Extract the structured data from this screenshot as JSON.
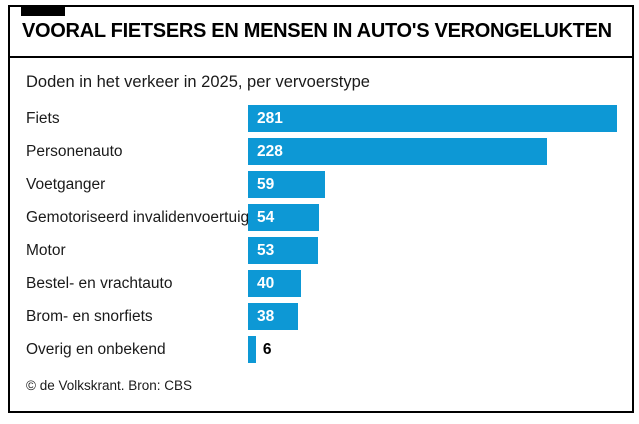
{
  "header": {
    "title": "VOORAL FIETSERS EN MENSEN IN AUTO'S VERONGELUKTEN"
  },
  "subtitle": "Doden in het verkeer in 2025, per vervoerstype",
  "footer": {
    "credit": "© de Volkskrant. Bron: CBS"
  },
  "colors": {
    "bar": "#0d98d5",
    "frame_border": "#000000",
    "title_text": "#000000",
    "body_text": "#1a1a1a",
    "value_label_inside": "#ffffff",
    "value_label_outside": "#000000"
  },
  "chart_data": {
    "type": "bar",
    "orientation": "horizontal",
    "title": "VOORAL FIETSERS EN MENSEN IN AUTO'S VERONGELUKTEN",
    "subtitle": "Doden in het verkeer in 2025, per vervoerstype",
    "categories": [
      "Fiets",
      "Personenauto",
      "Voetganger",
      "Gemotoriseerd invalidenvoertuig",
      "Motor",
      "Bestel- en vrachtauto",
      "Brom- en snorfiets",
      "Overig en onbekend"
    ],
    "values": [
      281,
      228,
      59,
      54,
      53,
      40,
      38,
      6
    ],
    "xlim": [
      0,
      281
    ],
    "grid": false,
    "legend": "none",
    "value_labels": "shown at left end of each bar",
    "source": "© de Volkskrant. Bron: CBS"
  }
}
